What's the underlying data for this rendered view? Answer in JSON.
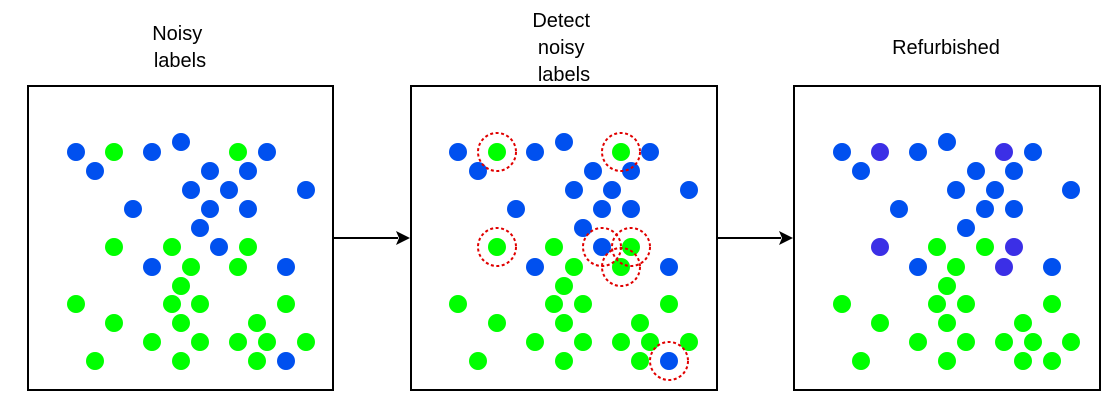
{
  "colors": {
    "blue": "#0050ef",
    "green": "#00ff00",
    "purple": "#3b2fe6",
    "marker": "#e00000",
    "stroke": "#000000"
  },
  "panels": [
    {
      "id": "noisy",
      "title_lines": [
        "Noisy",
        "labels"
      ],
      "dots": [
        [
          "blue",
          76,
          152
        ],
        [
          "green",
          114,
          152
        ],
        [
          "blue",
          152,
          152
        ],
        [
          "blue",
          181,
          142
        ],
        [
          "green",
          238,
          152
        ],
        [
          "blue",
          267,
          152
        ],
        [
          "blue",
          95,
          171
        ],
        [
          "blue",
          210,
          171
        ],
        [
          "blue",
          248,
          171
        ],
        [
          "blue",
          191,
          190
        ],
        [
          "blue",
          229,
          190
        ],
        [
          "blue",
          306,
          190
        ],
        [
          "blue",
          133,
          209
        ],
        [
          "blue",
          210,
          209
        ],
        [
          "blue",
          248,
          209
        ],
        [
          "blue",
          200,
          228
        ],
        [
          "green",
          114,
          247
        ],
        [
          "green",
          172,
          247
        ],
        [
          "blue",
          219,
          247
        ],
        [
          "green",
          248,
          247
        ],
        [
          "blue",
          152,
          267
        ],
        [
          "green",
          191,
          267
        ],
        [
          "green",
          238,
          267
        ],
        [
          "blue",
          286,
          267
        ],
        [
          "green",
          181,
          286
        ],
        [
          "green",
          76,
          304
        ],
        [
          "green",
          172,
          304
        ],
        [
          "green",
          200,
          304
        ],
        [
          "green",
          286,
          304
        ],
        [
          "green",
          114,
          323
        ],
        [
          "green",
          181,
          323
        ],
        [
          "green",
          257,
          323
        ],
        [
          "green",
          152,
          342
        ],
        [
          "green",
          200,
          342
        ],
        [
          "green",
          238,
          342
        ],
        [
          "green",
          267,
          342
        ],
        [
          "green",
          306,
          342
        ],
        [
          "green",
          95,
          361
        ],
        [
          "green",
          181,
          361
        ],
        [
          "green",
          257,
          361
        ],
        [
          "blue",
          286,
          361
        ]
      ]
    },
    {
      "id": "detect",
      "title_lines": [
        "Detect",
        "noisy",
        "labels"
      ],
      "dots": [
        [
          "blue",
          458,
          152
        ],
        [
          "green",
          497,
          152
        ],
        [
          "blue",
          535,
          152
        ],
        [
          "blue",
          564,
          142
        ],
        [
          "green",
          621,
          152
        ],
        [
          "blue",
          650,
          152
        ],
        [
          "blue",
          478,
          171
        ],
        [
          "blue",
          593,
          171
        ],
        [
          "blue",
          631,
          171
        ],
        [
          "blue",
          574,
          190
        ],
        [
          "blue",
          612,
          190
        ],
        [
          "blue",
          689,
          190
        ],
        [
          "blue",
          516,
          209
        ],
        [
          "blue",
          602,
          209
        ],
        [
          "blue",
          631,
          209
        ],
        [
          "blue",
          583,
          228
        ],
        [
          "green",
          497,
          247
        ],
        [
          "green",
          554,
          247
        ],
        [
          "blue",
          602,
          247
        ],
        [
          "green",
          631,
          247
        ],
        [
          "blue",
          535,
          267
        ],
        [
          "green",
          574,
          267
        ],
        [
          "green",
          621,
          267
        ],
        [
          "blue",
          669,
          267
        ],
        [
          "green",
          564,
          286
        ],
        [
          "green",
          458,
          304
        ],
        [
          "green",
          554,
          304
        ],
        [
          "green",
          583,
          304
        ],
        [
          "green",
          669,
          304
        ],
        [
          "green",
          497,
          323
        ],
        [
          "green",
          564,
          323
        ],
        [
          "green",
          640,
          323
        ],
        [
          "green",
          535,
          342
        ],
        [
          "green",
          583,
          342
        ],
        [
          "green",
          621,
          342
        ],
        [
          "green",
          650,
          342
        ],
        [
          "green",
          689,
          342
        ],
        [
          "green",
          478,
          361
        ],
        [
          "green",
          564,
          361
        ],
        [
          "green",
          640,
          361
        ],
        [
          "blue",
          669,
          361
        ]
      ],
      "marks": [
        [
          497,
          152
        ],
        [
          621,
          152
        ],
        [
          497,
          247
        ],
        [
          602,
          247
        ],
        [
          631,
          247
        ],
        [
          621,
          267
        ],
        [
          669,
          361
        ]
      ]
    },
    {
      "id": "refurbished",
      "title_lines": [
        "Refurbished"
      ],
      "dots": [
        [
          "blue",
          842,
          152
        ],
        [
          "purple",
          880,
          152
        ],
        [
          "blue",
          918,
          152
        ],
        [
          "blue",
          947,
          142
        ],
        [
          "purple",
          1004,
          152
        ],
        [
          "blue",
          1033,
          152
        ],
        [
          "blue",
          861,
          171
        ],
        [
          "blue",
          976,
          171
        ],
        [
          "blue",
          1014,
          171
        ],
        [
          "blue",
          956,
          190
        ],
        [
          "blue",
          995,
          190
        ],
        [
          "blue",
          1071,
          190
        ],
        [
          "blue",
          899,
          209
        ],
        [
          "blue",
          985,
          209
        ],
        [
          "blue",
          1014,
          209
        ],
        [
          "blue",
          966,
          228
        ],
        [
          "purple",
          880,
          247
        ],
        [
          "green",
          937,
          247
        ],
        [
          "green",
          985,
          247
        ],
        [
          "purple",
          1014,
          247
        ],
        [
          "blue",
          918,
          267
        ],
        [
          "green",
          956,
          267
        ],
        [
          "purple",
          1004,
          267
        ],
        [
          "blue",
          1052,
          267
        ],
        [
          "green",
          947,
          286
        ],
        [
          "green",
          842,
          304
        ],
        [
          "green",
          937,
          304
        ],
        [
          "green",
          966,
          304
        ],
        [
          "green",
          1052,
          304
        ],
        [
          "green",
          880,
          323
        ],
        [
          "green",
          947,
          323
        ],
        [
          "green",
          1023,
          323
        ],
        [
          "green",
          918,
          342
        ],
        [
          "green",
          966,
          342
        ],
        [
          "green",
          1004,
          342
        ],
        [
          "green",
          1033,
          342
        ],
        [
          "green",
          1071,
          342
        ],
        [
          "green",
          861,
          361
        ],
        [
          "green",
          947,
          361
        ],
        [
          "green",
          1023,
          361
        ],
        [
          "green",
          1052,
          361
        ]
      ]
    }
  ]
}
